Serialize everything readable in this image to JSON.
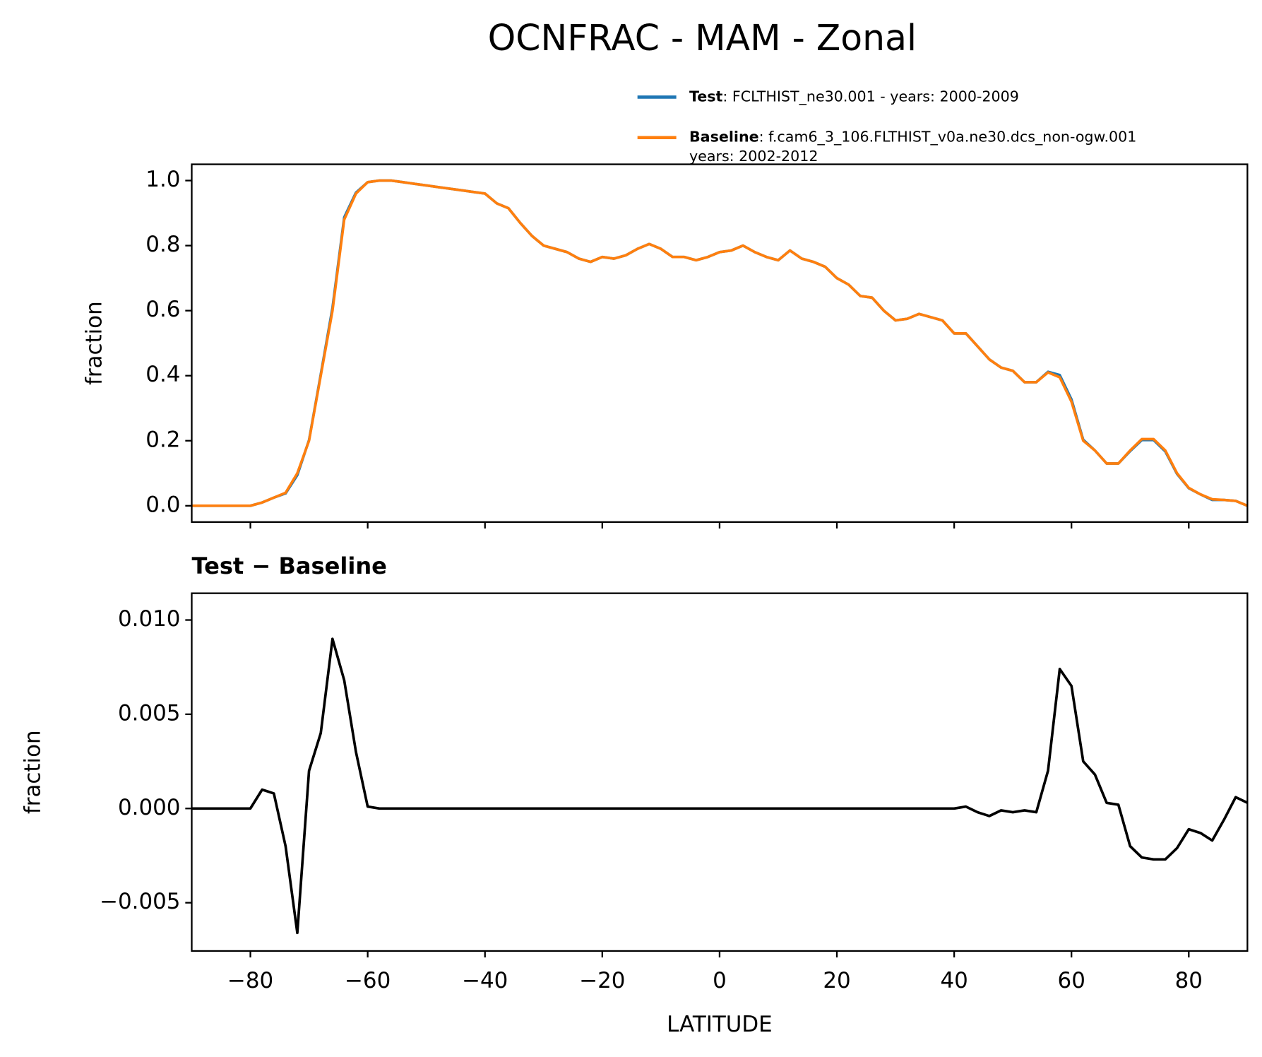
{
  "chart_data": [
    {
      "type": "line",
      "title": "OCNFRAC - MAM - Zonal",
      "ylabel": "fraction",
      "x": [
        -90,
        -88,
        -86,
        -84,
        -82,
        -80,
        -78,
        -76,
        -74,
        -72,
        -70,
        -68,
        -66,
        -64,
        -62,
        -60,
        -58,
        -56,
        -54,
        -52,
        -50,
        -48,
        -46,
        -44,
        -42,
        -40,
        -38,
        -36,
        -34,
        -32,
        -30,
        -28,
        -26,
        -24,
        -22,
        -20,
        -18,
        -16,
        -14,
        -12,
        -10,
        -8,
        -6,
        -4,
        -2,
        0,
        2,
        4,
        6,
        8,
        10,
        12,
        14,
        16,
        18,
        20,
        22,
        24,
        26,
        28,
        30,
        32,
        34,
        36,
        38,
        40,
        42,
        44,
        46,
        48,
        50,
        52,
        54,
        56,
        58,
        60,
        62,
        64,
        66,
        68,
        70,
        72,
        74,
        76,
        78,
        80,
        82,
        84,
        86,
        88,
        90
      ],
      "series": [
        {
          "name": "Test",
          "description": [
            ": FCLTHIST_ne30.001 - years: 2000-2009"
          ],
          "color": "#1f77b4",
          "values": [
            0,
            0,
            0,
            0,
            0,
            0,
            0.01,
            0.025,
            0.038,
            0.094,
            0.202,
            0.404,
            0.609,
            0.887,
            0.963,
            0.995,
            1.0,
            1.0,
            0.995,
            0.99,
            0.985,
            0.98,
            0.975,
            0.97,
            0.965,
            0.96,
            0.93,
            0.915,
            0.87,
            0.83,
            0.8,
            0.79,
            0.78,
            0.76,
            0.75,
            0.765,
            0.76,
            0.77,
            0.79,
            0.805,
            0.79,
            0.765,
            0.765,
            0.755,
            0.765,
            0.78,
            0.785,
            0.8,
            0.78,
            0.765,
            0.755,
            0.785,
            0.76,
            0.75,
            0.735,
            0.7,
            0.68,
            0.645,
            0.64,
            0.6,
            0.57,
            0.575,
            0.59,
            0.58,
            0.57,
            0.53,
            0.53,
            0.49,
            0.45,
            0.425,
            0.415,
            0.38,
            0.38,
            0.412,
            0.402,
            0.327,
            0.203,
            0.17,
            0.13,
            0.13,
            0.168,
            0.202,
            0.202,
            0.167,
            0.098,
            0.054,
            0.035,
            0.018,
            0.018,
            0.015,
            0.0
          ]
        },
        {
          "name": "Baseline",
          "description": [
            ": f.cam6_3_106.FLTHIST_v0a.ne30.dcs_non-ogw.001",
            "years: 2002-2012"
          ],
          "color": "#ff7f0e",
          "values": [
            0,
            0,
            0,
            0,
            0,
            0,
            0.01,
            0.025,
            0.04,
            0.1,
            0.2,
            0.4,
            0.6,
            0.88,
            0.96,
            0.995,
            1.0,
            1.0,
            0.995,
            0.99,
            0.985,
            0.98,
            0.975,
            0.97,
            0.965,
            0.96,
            0.93,
            0.915,
            0.87,
            0.83,
            0.8,
            0.79,
            0.78,
            0.76,
            0.75,
            0.765,
            0.76,
            0.77,
            0.79,
            0.805,
            0.79,
            0.765,
            0.765,
            0.755,
            0.765,
            0.78,
            0.785,
            0.8,
            0.78,
            0.765,
            0.755,
            0.785,
            0.76,
            0.75,
            0.735,
            0.7,
            0.68,
            0.645,
            0.64,
            0.6,
            0.57,
            0.575,
            0.59,
            0.58,
            0.57,
            0.53,
            0.53,
            0.49,
            0.45,
            0.425,
            0.415,
            0.38,
            0.38,
            0.41,
            0.395,
            0.32,
            0.2,
            0.17,
            0.13,
            0.13,
            0.17,
            0.205,
            0.205,
            0.17,
            0.1,
            0.055,
            0.035,
            0.02,
            0.018,
            0.015,
            0.0
          ]
        }
      ],
      "xlim": [
        -90,
        90
      ],
      "xticks": [
        -80,
        -60,
        -40,
        -20,
        0,
        20,
        40,
        60,
        80
      ],
      "ylim": [
        -0.05,
        1.05
      ],
      "yticks": [
        {
          "value": 0,
          "label": "0.0"
        },
        0.2,
        0.4,
        0.6,
        0.8,
        {
          "value": 1,
          "label": "1.0"
        }
      ]
    },
    {
      "type": "line",
      "title": "Test − Baseline",
      "ylabel": "fraction",
      "xlabel": "LATITUDE",
      "x": [
        -90,
        -88,
        -86,
        -84,
        -82,
        -80,
        -78,
        -76,
        -74,
        -72,
        -70,
        -68,
        -66,
        -64,
        -62,
        -60,
        -58,
        -56,
        -54,
        -52,
        -50,
        -48,
        -46,
        -44,
        -42,
        -40,
        -38,
        -36,
        -34,
        -32,
        -30,
        -28,
        -26,
        -24,
        -22,
        -20,
        -18,
        -16,
        -14,
        -12,
        -10,
        -8,
        -6,
        -4,
        -2,
        0,
        2,
        4,
        6,
        8,
        10,
        12,
        14,
        16,
        18,
        20,
        22,
        24,
        26,
        28,
        30,
        32,
        34,
        36,
        38,
        40,
        42,
        44,
        46,
        48,
        50,
        52,
        54,
        56,
        58,
        60,
        62,
        64,
        66,
        68,
        70,
        72,
        74,
        76,
        78,
        80,
        82,
        84,
        86,
        88,
        90
      ],
      "series": [
        {
          "color": "#000000",
          "values": [
            0,
            0,
            0,
            0,
            0,
            0,
            0.001,
            0.0008,
            -0.002,
            -0.0066,
            0.002,
            0.004,
            0.009,
            0.0068,
            0.003,
            0.0001,
            0,
            0,
            0,
            0,
            0,
            0,
            0,
            0,
            0,
            0,
            0,
            0,
            0,
            0,
            0,
            0,
            0,
            0,
            0,
            0,
            0,
            0,
            0,
            0,
            0,
            0,
            0,
            0,
            0,
            0,
            0,
            0,
            0,
            0,
            0,
            0,
            0,
            0,
            0,
            0,
            0,
            0,
            0,
            0,
            0,
            0,
            0,
            0,
            0,
            0,
            0.0001,
            -0.0002,
            -0.0004,
            -0.0001,
            -0.0002,
            -0.0001,
            -0.0002,
            0.002,
            0.0074,
            0.0065,
            0.0025,
            0.0018,
            0.0003,
            0.0002,
            -0.002,
            -0.0026,
            -0.0027,
            -0.0027,
            -0.0021,
            -0.0011,
            -0.0013,
            -0.0017,
            -0.0006,
            0.0006,
            0.0003
          ]
        }
      ],
      "xlim": [
        -90,
        90
      ],
      "xticks": [
        {
          "value": -80,
          "label": "−80"
        },
        {
          "value": -60,
          "label": "−60"
        },
        {
          "value": -40,
          "label": "−40"
        },
        {
          "value": -20,
          "label": "−20"
        },
        0,
        20,
        40,
        60,
        80
      ],
      "ylim": [
        -0.00756,
        0.01142
      ],
      "yticks": [
        {
          "value": -0.005,
          "label": "−0.005"
        },
        {
          "value": 0,
          "label": "0.000"
        },
        0.005,
        {
          "value": 0.01,
          "label": "0.010"
        }
      ]
    }
  ]
}
